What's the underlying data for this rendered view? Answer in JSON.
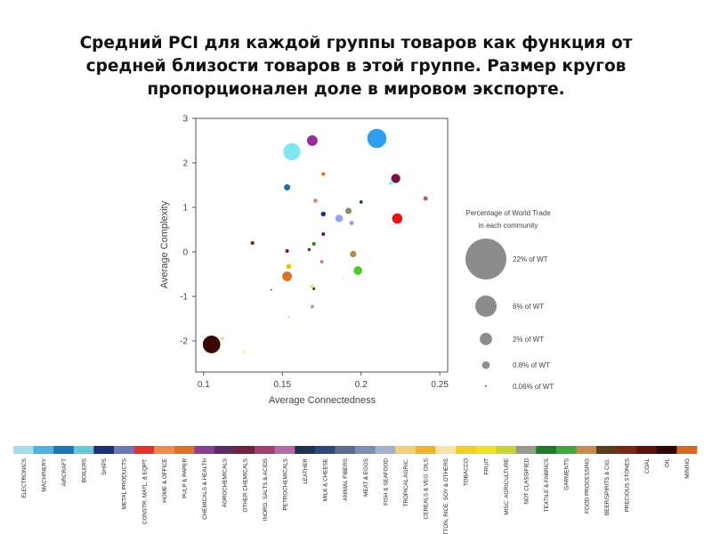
{
  "title_lines": [
    "Средний PCI для каждой группы товаров как функция от",
    "средней близости товаров в этой группе. Размер кругов",
    "пропорционален доле в мировом экспорте."
  ],
  "chart_data": {
    "type": "scatter",
    "xlabel": "Average Connectedness",
    "ylabel": "Average Complexity",
    "xlim": [
      0.095,
      0.255
    ],
    "ylim": [
      -2.7,
      3.0
    ],
    "xticks": [
      0.1,
      0.15,
      0.2,
      0.25
    ],
    "xtick_labels": [
      "0.1",
      "0.15",
      "0.2",
      "0.25"
    ],
    "yticks": [
      3,
      2,
      1,
      0,
      -1,
      -2
    ],
    "ytick_labels": [
      "3",
      "2",
      "1",
      "0",
      "-1",
      "-2"
    ],
    "points": [
      {
        "x": 0.21,
        "y": 2.55,
        "share": 12.0,
        "color": "#2e9ef0"
      },
      {
        "x": 0.156,
        "y": 2.25,
        "share": 9.5,
        "color": "#80e6f0"
      },
      {
        "x": 0.169,
        "y": 2.5,
        "share": 3.8,
        "color": "#9b2a9b"
      },
      {
        "x": 0.222,
        "y": 1.65,
        "share": 2.9,
        "color": "#7a0f45"
      },
      {
        "x": 0.219,
        "y": 1.55,
        "share": 0.55,
        "color": "#7ff2f2"
      },
      {
        "x": 0.241,
        "y": 1.2,
        "share": 0.8,
        "color": "#a85a98"
      },
      {
        "x": 0.176,
        "y": 1.75,
        "share": 0.55,
        "color": "#e07020"
      },
      {
        "x": 0.153,
        "y": 1.45,
        "share": 1.4,
        "color": "#1e6ea8"
      },
      {
        "x": 0.171,
        "y": 1.15,
        "share": 0.7,
        "color": "#e87a7a"
      },
      {
        "x": 0.2,
        "y": 1.12,
        "share": 0.45,
        "color": "#1a3a5a"
      },
      {
        "x": 0.223,
        "y": 0.75,
        "share": 3.6,
        "color": "#ee1111"
      },
      {
        "x": 0.176,
        "y": 0.85,
        "share": 0.9,
        "color": "#1f2a9a"
      },
      {
        "x": 0.186,
        "y": 0.75,
        "share": 2.0,
        "color": "#8ba8e8"
      },
      {
        "x": 0.192,
        "y": 0.92,
        "share": 1.5,
        "color": "#8c8c7a"
      },
      {
        "x": 0.194,
        "y": 0.65,
        "share": 0.8,
        "color": "#aa99dd"
      },
      {
        "x": 0.131,
        "y": 0.2,
        "share": 0.6,
        "color": "#7a2a1a"
      },
      {
        "x": 0.153,
        "y": 0.02,
        "share": 0.55,
        "color": "#8a1a1a"
      },
      {
        "x": 0.17,
        "y": 0.18,
        "share": 0.6,
        "color": "#2e8a1e"
      },
      {
        "x": 0.176,
        "y": 0.4,
        "share": 0.5,
        "color": "#4a1a5a"
      },
      {
        "x": 0.167,
        "y": 0.05,
        "share": 0.4,
        "color": "#5a3a1a"
      },
      {
        "x": 0.175,
        "y": -0.22,
        "share": 0.45,
        "color": "#d06a9a"
      },
      {
        "x": 0.195,
        "y": -0.05,
        "share": 1.5,
        "color": "#bb8844"
      },
      {
        "x": 0.198,
        "y": -0.42,
        "share": 2.6,
        "color": "#44cc22"
      },
      {
        "x": 0.153,
        "y": -0.55,
        "share": 3.2,
        "color": "#d9731e"
      },
      {
        "x": 0.154,
        "y": -0.33,
        "share": 0.9,
        "color": "#f2c200"
      },
      {
        "x": 0.169,
        "y": -0.78,
        "share": 0.6,
        "color": "#e6e655"
      },
      {
        "x": 0.17,
        "y": -0.83,
        "share": 0.3,
        "color": "#2a2a2a"
      },
      {
        "x": 0.143,
        "y": -0.85,
        "share": 0.12,
        "color": "#000000"
      },
      {
        "x": 0.188,
        "y": -0.6,
        "share": 0.15,
        "color": "#e8e888"
      },
      {
        "x": 0.169,
        "y": -1.23,
        "share": 0.5,
        "color": "#99a8bb"
      },
      {
        "x": 0.154,
        "y": -1.46,
        "share": 0.2,
        "color": "#dddd66"
      },
      {
        "x": 0.105,
        "y": -2.08,
        "share": 10.0,
        "color": "#3a0505"
      },
      {
        "x": 0.112,
        "y": -1.95,
        "share": 0.5,
        "color": "#f0dc78"
      },
      {
        "x": 0.126,
        "y": -2.25,
        "share": 0.4,
        "color": "#f5f2a8"
      }
    ]
  },
  "legend": {
    "title_lines": [
      "Percentage of World Trade",
      "in each community"
    ],
    "items": [
      {
        "label": "22% of WT",
        "share": 22
      },
      {
        "label": "6% of WT",
        "share": 6
      },
      {
        "label": "2% of WT",
        "share": 2
      },
      {
        "label": "0.8% of WT",
        "share": 0.8
      },
      {
        "label": "0.06% of WT",
        "share": 0.06
      }
    ],
    "color": "#8c8c8c"
  },
  "categories": [
    {
      "label": "ELECTRONICS",
      "color": "#a6dde8"
    },
    {
      "label": "MACHINERY",
      "color": "#4db3e0"
    },
    {
      "label": "AIRCRAFT",
      "color": "#1c77b5"
    },
    {
      "label": "BOILERS",
      "color": "#67c8d6"
    },
    {
      "label": "SHIPS",
      "color": "#1f2f7a"
    },
    {
      "label": "METAL PRODUCTS",
      "color": "#6b78b8"
    },
    {
      "label": "CONSTR. MATL. & EQPT.",
      "color": "#e8302f"
    },
    {
      "label": "HOME & OFFICE",
      "color": "#f08a4b"
    },
    {
      "label": "PULP & PAPER",
      "color": "#e0711e"
    },
    {
      "label": "CHEMICALS & HEALTH",
      "color": "#8a3e96"
    },
    {
      "label": "AGROCHEMICALS",
      "color": "#5c2d62"
    },
    {
      "label": "OTHER CHEMICALS",
      "color": "#6e2340"
    },
    {
      "label": "INORG. SALTS & ACIDS",
      "color": "#a33f6e"
    },
    {
      "label": "PETROCHEMICALS",
      "color": "#b36aa6"
    },
    {
      "label": "LEATHER",
      "color": "#1f3350"
    },
    {
      "label": "MILK & CHEESE",
      "color": "#2b4a7c"
    },
    {
      "label": "ANIMAL FIBERS",
      "color": "#5d6c8e"
    },
    {
      "label": "MEAT & EGGS",
      "color": "#7d8fb0"
    },
    {
      "label": "FISH & SEAFOOD",
      "color": "#9fb3cc"
    },
    {
      "label": "TROPICAL AGRIC.",
      "color": "#f2d07a"
    },
    {
      "label": "CEREALS & VEG. OILS",
      "color": "#f0b429"
    },
    {
      "label": "COTTON, RICE, SOY & OTHERS",
      "color": "#f5e6a8"
    },
    {
      "label": "TOBACCO",
      "color": "#f5cf1f"
    },
    {
      "label": "FRUIT",
      "color": "#eee21a"
    },
    {
      "label": "MISC. AGRICULTURE",
      "color": "#c9d431"
    },
    {
      "label": "NOT CLASSIFIED",
      "color": "#9a9a8a"
    },
    {
      "label": "TEXTILE & FABRICS",
      "color": "#1f7a2e"
    },
    {
      "label": "GARMENTS",
      "color": "#3ea83a"
    },
    {
      "label": "FOOD PROCESSING",
      "color": "#c98a4a"
    },
    {
      "label": "BEER/SPIRITS & CIG.",
      "color": "#5a3d1e"
    },
    {
      "label": "PRECIOUS STONES",
      "color": "#7a2515"
    },
    {
      "label": "COAL",
      "color": "#5c1010"
    },
    {
      "label": "OIL",
      "color": "#2e0808"
    },
    {
      "label": "MINING",
      "color": "#d9691e"
    }
  ]
}
